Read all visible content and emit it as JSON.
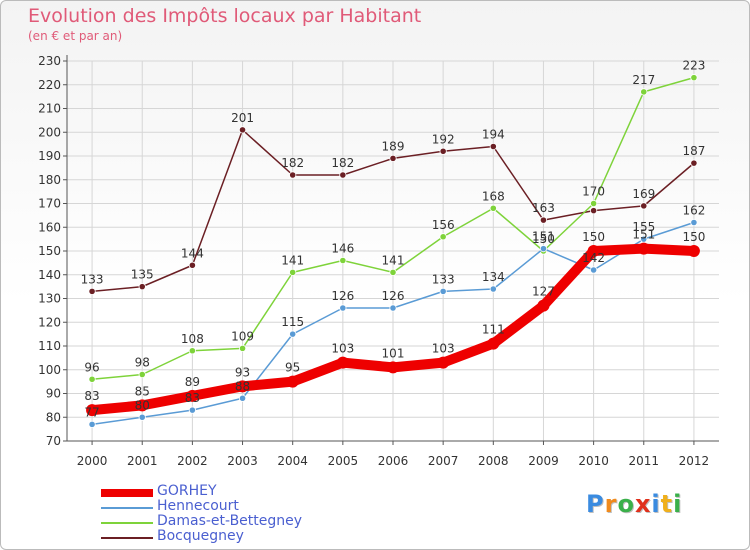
{
  "title": "Evolution des Impôts locaux par Habitant",
  "subtitle": "(en € et par an)",
  "logo": {
    "text": "Proxiti",
    "letters": [
      {
        "ch": "P",
        "color": "#3a8be0"
      },
      {
        "ch": "r",
        "color": "#f08a1c"
      },
      {
        "ch": "o",
        "color": "#3ab04a"
      },
      {
        "ch": "x",
        "color": "#e0301c"
      },
      {
        "ch": "i",
        "color": "#3a8be0"
      },
      {
        "ch": "t",
        "color": "#f0b01c"
      },
      {
        "ch": "i",
        "color": "#3ab04a"
      }
    ]
  },
  "chart_data": {
    "type": "line",
    "title": "Evolution des Impôts locaux par Habitant",
    "subtitle": "(en € et par an)",
    "x": [
      "2000",
      "2001",
      "2002",
      "2003",
      "2004",
      "2005",
      "2006",
      "2007",
      "2008",
      "2009",
      "2010",
      "2011",
      "2012"
    ],
    "ylim": [
      70,
      230
    ],
    "yticks": [
      "70",
      "80",
      "90",
      "100",
      "110",
      "120",
      "130",
      "140",
      "150",
      "160",
      "170",
      "180",
      "190",
      "200",
      "210",
      "220",
      "230"
    ],
    "grid": true,
    "legend_position": "bottom-left",
    "series": [
      {
        "name": "Bocquegney",
        "color": "#6b1f24",
        "values": [
          133,
          135,
          144,
          201,
          182,
          182,
          189,
          192,
          194,
          163,
          167,
          169,
          187
        ],
        "labels": [
          "133",
          "135",
          "144",
          "201",
          "182",
          "182",
          "189",
          "192",
          "194",
          "163",
          "",
          "169",
          "187"
        ]
      },
      {
        "name": "Damas-et-Bettegney",
        "color": "#7ed33a",
        "values": [
          96,
          98,
          108,
          109,
          141,
          146,
          141,
          156,
          168,
          150,
          170,
          217,
          223
        ],
        "labels": [
          "96",
          "98",
          "108",
          "109",
          "141",
          "146",
          "141",
          "156",
          "168",
          "150",
          "170",
          "217",
          "223"
        ]
      },
      {
        "name": "Hennecourt",
        "color": "#5a9bd5",
        "values": [
          77,
          80,
          83,
          88,
          115,
          126,
          126,
          133,
          134,
          151,
          142,
          155,
          162
        ],
        "labels": [
          "77",
          "80",
          "83",
          "88",
          "115",
          "126",
          "126",
          "133",
          "134",
          "151",
          "142",
          "155",
          "162"
        ]
      },
      {
        "name": "GORHEY",
        "color": "#ee0000",
        "values": [
          83,
          85,
          89,
          93,
          95,
          103,
          101,
          103,
          111,
          127,
          150,
          151,
          150
        ],
        "labels": [
          "83",
          "85",
          "89",
          "93",
          "95",
          "103",
          "101",
          "103",
          "111",
          "127",
          "150",
          "151",
          "150"
        ]
      }
    ],
    "legend": [
      "GORHEY",
      "Hennecourt",
      "Damas-et-Bettegney",
      "Bocquegney"
    ]
  }
}
